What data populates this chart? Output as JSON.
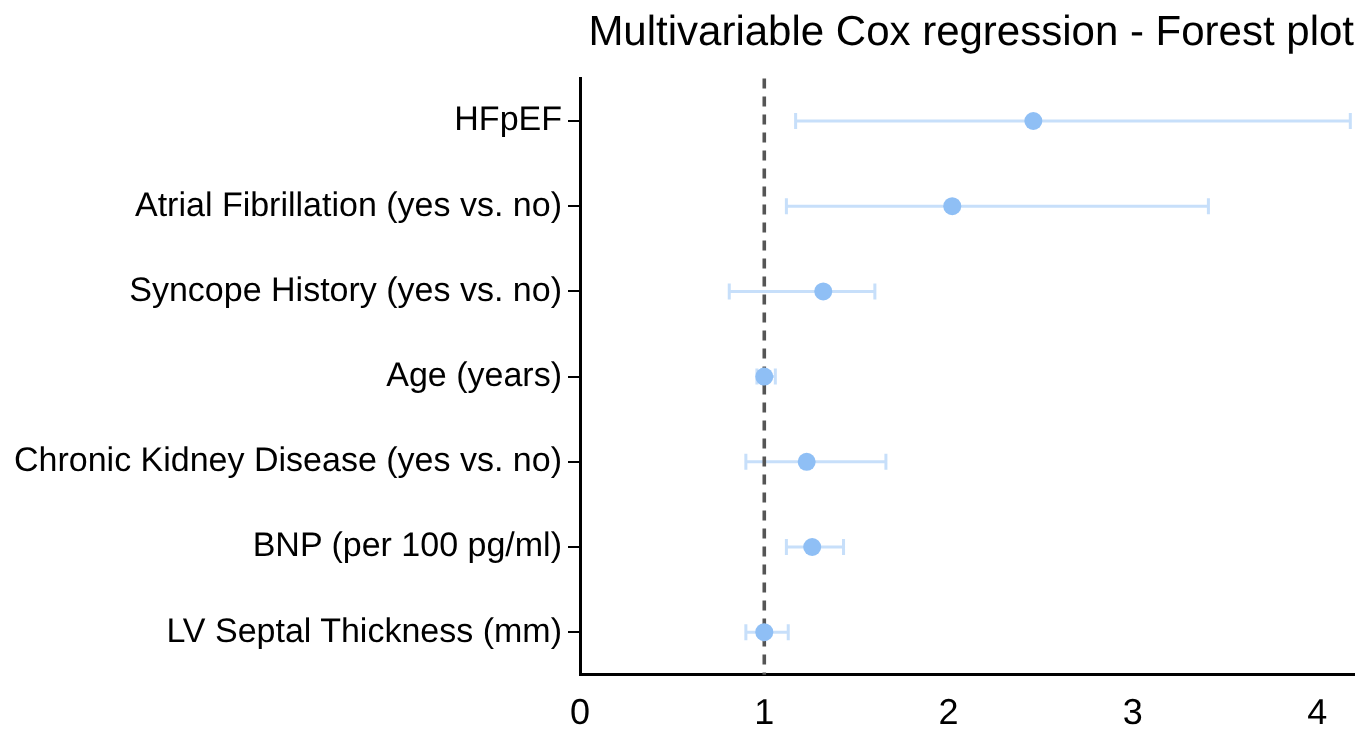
{
  "chart_data": {
    "type": "scatter",
    "orientation": "horizontal",
    "title": "Multivariable Cox regression - Forest plot",
    "categories": [
      "HFpEF",
      "Atrial Fibrillation (yes vs. no)",
      "Syncope History (yes vs. no)",
      "Age (years)",
      "Chronic Kidney Disease (yes vs. no)",
      "BNP (per 100 pg/ml)",
      "LV Septal Thickness (mm)"
    ],
    "values": [
      2.46,
      2.02,
      1.32,
      1.0,
      1.23,
      1.26,
      1.0
    ],
    "errors": [
      [
        1.17,
        4.18
      ],
      [
        1.12,
        3.41
      ],
      [
        0.81,
        1.6
      ],
      [
        0.96,
        1.06
      ],
      [
        0.9,
        1.66
      ],
      [
        1.12,
        1.43
      ],
      [
        0.9,
        1.13
      ]
    ],
    "color": "#8fbff5",
    "xlim": [
      0,
      4.2
    ],
    "xticks": [
      0,
      1,
      2,
      3,
      4
    ],
    "ref_lines": [
      {
        "axis": "x",
        "value": 1,
        "line_style": "dashed",
        "color": "#555555"
      }
    ],
    "grid": false,
    "legend": false,
    "marker": "circle"
  }
}
